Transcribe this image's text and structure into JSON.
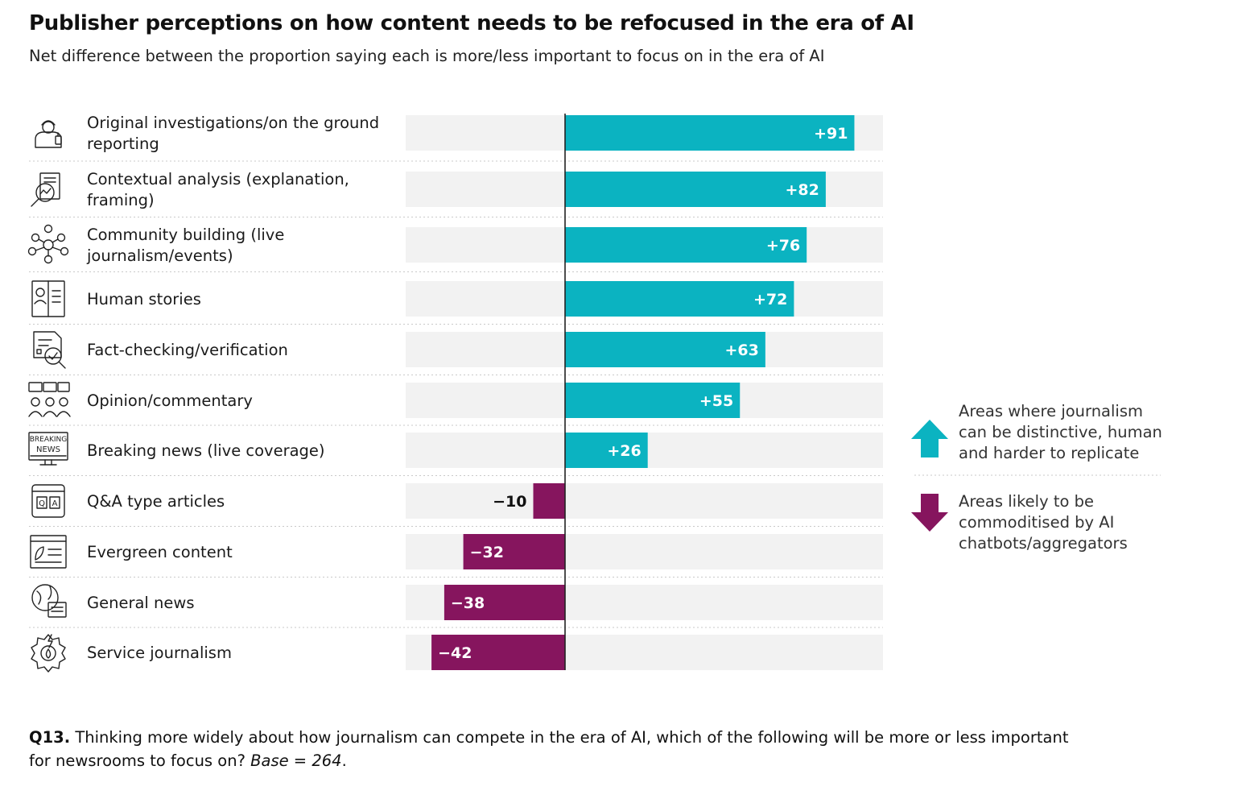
{
  "title": "Publisher perceptions on how content needs to be refocused in the era of AI",
  "subtitle": "Net difference between the proportion saying each is more/less important to focus on in the era of AI",
  "colors": {
    "positive": "#0bb3c1",
    "negative": "#86155e",
    "track": "#f2f2f2",
    "axis": "#222222"
  },
  "chart_data": {
    "type": "bar",
    "orientation": "horizontal",
    "diverging": true,
    "xlim": [
      -50,
      100
    ],
    "categories": [
      "Original investigations/on the ground reporting",
      "Contextual analysis (explanation, framing)",
      "Community building (live journalism/events)",
      "Human stories",
      "Fact-checking/verification",
      "Opinion/commentary",
      "Breaking news (live coverage)",
      "Q&A type articles",
      "Evergreen content",
      "General news",
      "Service journalism"
    ],
    "category_lines": [
      [
        "Original investigations/on the ground",
        "reporting"
      ],
      [
        "Contextual analysis (explanation,",
        "framing)"
      ],
      [
        "Community building (live",
        "journalism/events)"
      ],
      [
        "Human stories"
      ],
      [
        "Fact-checking/verification"
      ],
      [
        "Opinion/commentary"
      ],
      [
        "Breaking news (live coverage)"
      ],
      [
        "Q&A type articles"
      ],
      [
        "Evergreen content"
      ],
      [
        "General news"
      ],
      [
        "Service journalism"
      ]
    ],
    "values": [
      91,
      82,
      76,
      72,
      63,
      55,
      26,
      -10,
      -32,
      -38,
      -42
    ],
    "value_labels": [
      "+91",
      "+82",
      "+76",
      "+72",
      "+63",
      "+55",
      "+26",
      "−10",
      "−32",
      "−38",
      "−42"
    ],
    "icons": [
      "reporter-icon",
      "magnifier-document-icon",
      "community-network-icon",
      "human-story-book-icon",
      "fact-check-document-icon",
      "opinion-speech-icon",
      "breaking-news-icon",
      "qa-article-icon",
      "evergreen-page-icon",
      "general-news-globe-icon",
      "service-gear-icon"
    ],
    "grid": false
  },
  "legend": {
    "up": {
      "icon": "arrow-up-icon",
      "lines": [
        "Areas where journalism",
        "can be distinctive, human",
        "and harder to replicate"
      ]
    },
    "down": {
      "icon": "arrow-down-icon",
      "lines": [
        "Areas likely to be",
        "commoditised by AI",
        "chatbots/aggregators"
      ]
    }
  },
  "footnote": {
    "question_id": "Q13.",
    "text": " Thinking more widely about how journalism can compete in the era of AI, which of the following will be more or less important for newsrooms to focus on? ",
    "base": "Base = 264",
    "end": "."
  }
}
